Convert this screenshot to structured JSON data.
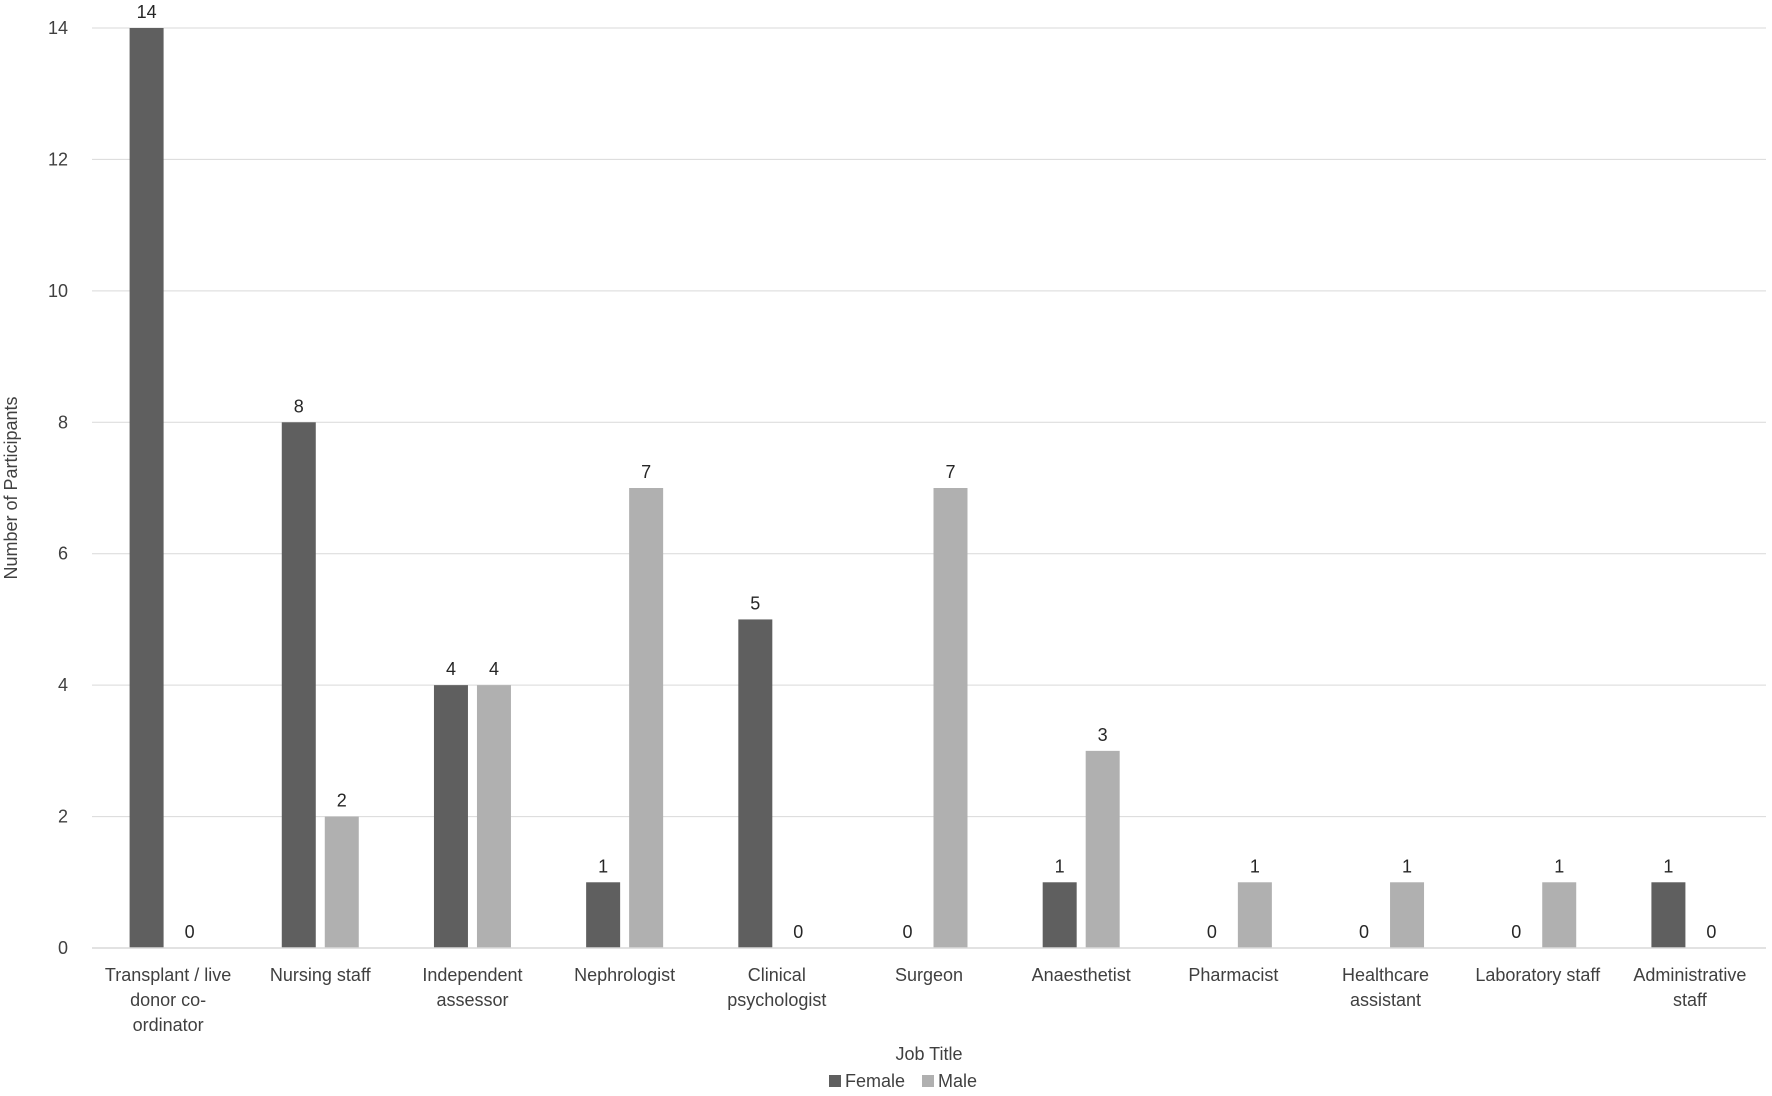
{
  "chart_data": {
    "type": "bar",
    "xlabel": "Job Title",
    "ylabel": "Number of Participants",
    "ylim": [
      0,
      14
    ],
    "yticks": [
      0,
      2,
      4,
      6,
      8,
      10,
      12,
      14
    ],
    "grid": true,
    "legend_position": "bottom",
    "categories": [
      [
        "Transplant / live",
        "donor co-",
        "ordinator"
      ],
      [
        "Nursing staff"
      ],
      [
        "Independent",
        "assessor"
      ],
      [
        "Nephrologist"
      ],
      [
        "Clinical",
        "psychologist"
      ],
      [
        "Surgeon"
      ],
      [
        "Anaesthetist"
      ],
      [
        "Pharmacist"
      ],
      [
        "Healthcare",
        "assistant"
      ],
      [
        "Laboratory staff"
      ],
      [
        "Administrative",
        "staff"
      ]
    ],
    "series": [
      {
        "name": "Female",
        "color": "#5f5f5f",
        "values": [
          14,
          8,
          4,
          1,
          5,
          0,
          1,
          0,
          0,
          0,
          1
        ]
      },
      {
        "name": "Male",
        "color": "#b0b0b0",
        "values": [
          0,
          2,
          4,
          7,
          0,
          7,
          3,
          1,
          1,
          1,
          0
        ]
      }
    ]
  }
}
